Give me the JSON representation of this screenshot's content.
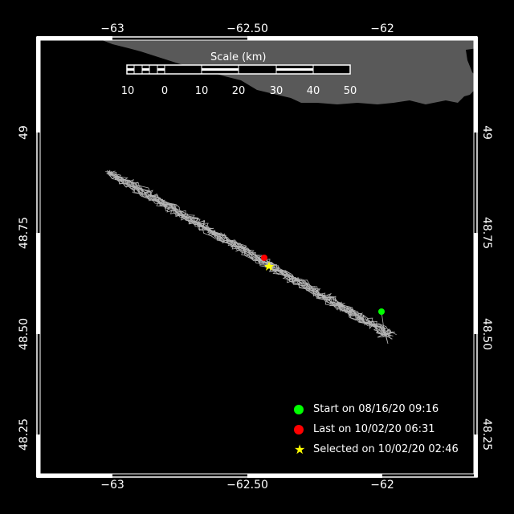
{
  "map": {
    "lon_labels": [
      "−63",
      "−62.50",
      "−62"
    ],
    "lat_labels": [
      "49",
      "48.75",
      "48.50",
      "48.25"
    ],
    "colors": {
      "land": "#595959",
      "track": "#b4b4b4",
      "frame": "#ffffff",
      "start": "#00ff00",
      "last": "#ff0000",
      "selected": "#ffff00"
    }
  },
  "scale": {
    "title": "Scale (km)",
    "ticks": [
      "10",
      "0",
      "10",
      "20",
      "30",
      "40",
      "50"
    ]
  },
  "legend": [
    {
      "label": "Start on 08/16/20 09:16",
      "marker": "circle",
      "color": "#00ff00"
    },
    {
      "label": "Last on 10/02/20 06:31",
      "marker": "circle",
      "color": "#ff0000"
    },
    {
      "label": "Selected on 10/02/20 02:46",
      "marker": "star",
      "color": "#ffff00"
    }
  ]
}
